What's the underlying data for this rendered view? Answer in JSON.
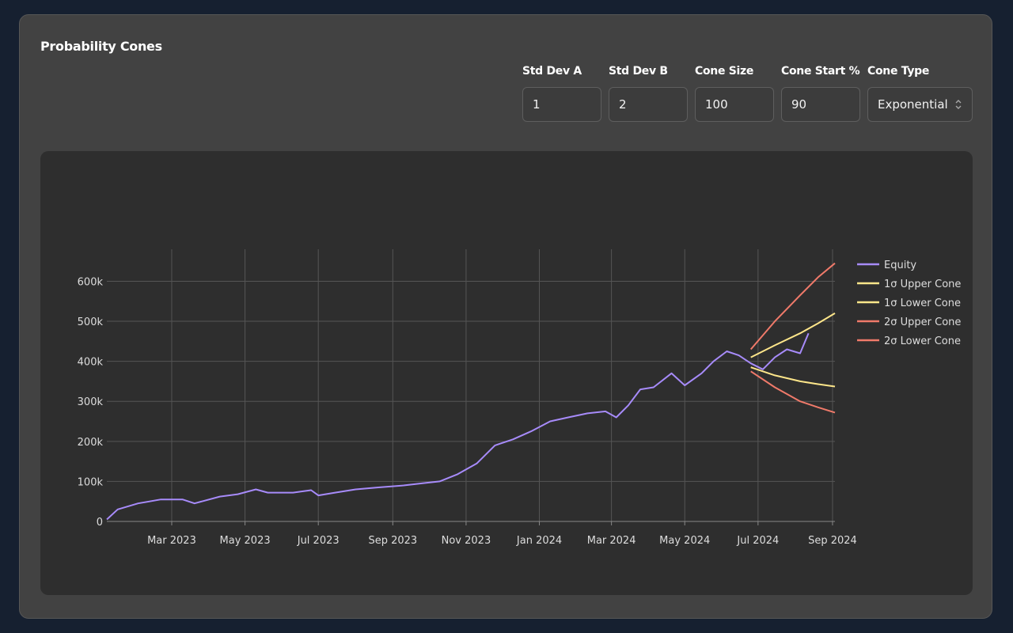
{
  "card": {
    "title": "Probability Cones"
  },
  "controls": [
    {
      "label": "Std Dev A",
      "value": "1"
    },
    {
      "label": "Std Dev B",
      "value": "2"
    },
    {
      "label": "Cone Size",
      "value": "100"
    },
    {
      "label": "Cone Start %",
      "value": "90"
    },
    {
      "label": "Cone Type",
      "value": "Exponential"
    }
  ],
  "chart_data": {
    "type": "line",
    "x_ticks": [
      "2023-03-01",
      "2023-05-01",
      "2023-07-01",
      "2023-09-01",
      "2023-11-01",
      "2024-01-01",
      "2024-03-01",
      "2024-05-01",
      "2024-07-01",
      "2024-09-01"
    ],
    "x_tick_labels": [
      "Mar 2023",
      "May 2023",
      "Jul 2023",
      "Sep 2023",
      "Nov 2023",
      "Jan 2024",
      "Mar 2024",
      "May 2024",
      "Jul 2024",
      "Sep 2024"
    ],
    "y_ticks": [
      0,
      100000,
      200000,
      300000,
      400000,
      500000,
      600000
    ],
    "y_tick_labels": [
      "0",
      "100k",
      "200k",
      "300k",
      "400k",
      "500k",
      "600k"
    ],
    "ylim": [
      0,
      680000
    ],
    "xlim": [
      "2023-01-06",
      "2024-09-03"
    ],
    "grid": true,
    "legend_position": "right",
    "series": [
      {
        "name": "Equity",
        "color": "#a78bfa",
        "points": [
          [
            "2023-01-06",
            5000
          ],
          [
            "2023-01-15",
            30000
          ],
          [
            "2023-02-01",
            45000
          ],
          [
            "2023-02-20",
            55000
          ],
          [
            "2023-03-10",
            55000
          ],
          [
            "2023-03-20",
            45000
          ],
          [
            "2023-04-10",
            62000
          ],
          [
            "2023-04-25",
            68000
          ],
          [
            "2023-05-10",
            80000
          ],
          [
            "2023-05-20",
            72000
          ],
          [
            "2023-06-10",
            72000
          ],
          [
            "2023-06-25",
            78000
          ],
          [
            "2023-07-01",
            65000
          ],
          [
            "2023-07-15",
            72000
          ],
          [
            "2023-08-01",
            80000
          ],
          [
            "2023-08-20",
            85000
          ],
          [
            "2023-09-10",
            90000
          ],
          [
            "2023-09-25",
            95000
          ],
          [
            "2023-10-10",
            100000
          ],
          [
            "2023-10-25",
            118000
          ],
          [
            "2023-11-10",
            145000
          ],
          [
            "2023-11-25",
            190000
          ],
          [
            "2023-12-10",
            205000
          ],
          [
            "2023-12-25",
            225000
          ],
          [
            "2024-01-10",
            250000
          ],
          [
            "2024-01-25",
            260000
          ],
          [
            "2024-02-10",
            270000
          ],
          [
            "2024-02-25",
            275000
          ],
          [
            "2024-03-05",
            260000
          ],
          [
            "2024-03-15",
            290000
          ],
          [
            "2024-03-25",
            330000
          ],
          [
            "2024-04-05",
            335000
          ],
          [
            "2024-04-20",
            370000
          ],
          [
            "2024-05-01",
            340000
          ],
          [
            "2024-05-15",
            370000
          ],
          [
            "2024-05-25",
            400000
          ],
          [
            "2024-06-05",
            425000
          ],
          [
            "2024-06-15",
            415000
          ],
          [
            "2024-06-25",
            395000
          ],
          [
            "2024-07-05",
            380000
          ],
          [
            "2024-07-15",
            410000
          ],
          [
            "2024-07-25",
            430000
          ],
          [
            "2024-08-05",
            420000
          ],
          [
            "2024-08-12",
            470000
          ]
        ]
      },
      {
        "name": "1σ Upper Cone",
        "color": "#fde68a",
        "points": [
          [
            "2024-06-25",
            410000
          ],
          [
            "2024-07-15",
            440000
          ],
          [
            "2024-08-05",
            470000
          ],
          [
            "2024-08-20",
            495000
          ],
          [
            "2024-09-03",
            520000
          ]
        ]
      },
      {
        "name": "1σ Lower Cone",
        "color": "#fde68a",
        "points": [
          [
            "2024-06-25",
            385000
          ],
          [
            "2024-07-15",
            365000
          ],
          [
            "2024-08-05",
            350000
          ],
          [
            "2024-08-20",
            343000
          ],
          [
            "2024-09-03",
            337000
          ]
        ]
      },
      {
        "name": "2σ Upper Cone",
        "color": "#f07a6a",
        "points": [
          [
            "2024-06-25",
            430000
          ],
          [
            "2024-07-15",
            500000
          ],
          [
            "2024-08-05",
            565000
          ],
          [
            "2024-08-20",
            610000
          ],
          [
            "2024-09-03",
            645000
          ]
        ]
      },
      {
        "name": "2σ Lower Cone",
        "color": "#f07a6a",
        "points": [
          [
            "2024-06-25",
            375000
          ],
          [
            "2024-07-15",
            335000
          ],
          [
            "2024-08-05",
            300000
          ],
          [
            "2024-08-20",
            285000
          ],
          [
            "2024-09-03",
            272000
          ]
        ]
      }
    ]
  },
  "colors": {
    "grid": "#555555",
    "axis_text": "#dddddd",
    "legend_text": "#dddddd"
  }
}
